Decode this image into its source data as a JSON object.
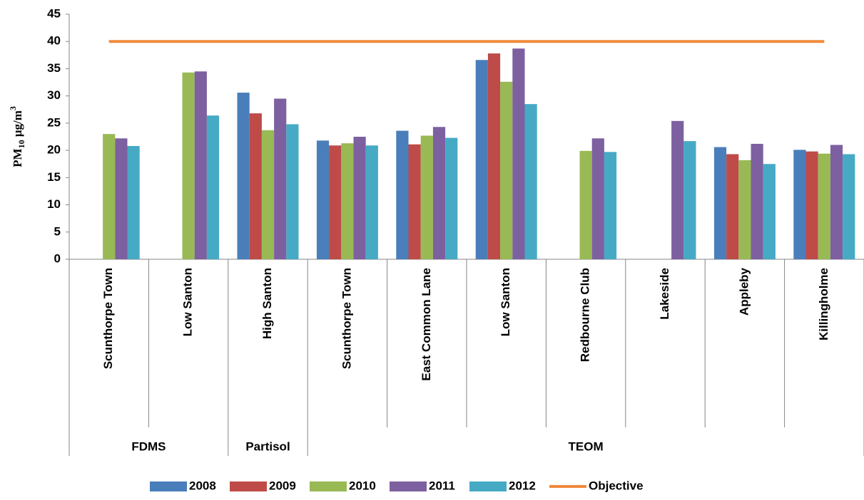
{
  "chart_data": {
    "type": "bar",
    "y_label": {
      "base": "PM",
      "sub": "10",
      "unit": " μg/m",
      "sup": "3"
    },
    "categories": [
      "Scunthorpe Town",
      "Low Santon",
      "High Santon",
      "Scunthorpe Town",
      "East Common Lane",
      "Low Santon",
      "Redbourne Club",
      "Lakeside",
      "Appleby",
      "Killingholme"
    ],
    "groups": [
      {
        "name": "FDMS",
        "span": 2
      },
      {
        "name": "Partisol",
        "span": 1
      },
      {
        "name": "TEOM",
        "span": 7
      }
    ],
    "series": [
      {
        "name": "2008",
        "color": "#4a7ebb",
        "values": [
          null,
          null,
          30.6,
          21.8,
          23.6,
          36.6,
          null,
          null,
          20.6,
          20.1
        ]
      },
      {
        "name": "2009",
        "color": "#be4b48",
        "values": [
          null,
          null,
          26.8,
          20.9,
          21.1,
          37.8,
          null,
          null,
          19.3,
          19.8
        ]
      },
      {
        "name": "2010",
        "color": "#98b954",
        "values": [
          23.0,
          34.3,
          23.7,
          21.3,
          22.7,
          32.6,
          19.9,
          null,
          18.2,
          19.4
        ]
      },
      {
        "name": "2011",
        "color": "#7d60a0",
        "values": [
          22.2,
          34.5,
          29.5,
          22.5,
          24.3,
          38.7,
          22.2,
          25.4,
          21.2,
          21.0
        ]
      },
      {
        "name": "2012",
        "color": "#46aac5",
        "values": [
          20.8,
          26.4,
          24.8,
          20.9,
          22.3,
          28.5,
          19.7,
          21.7,
          17.5,
          19.3
        ]
      },
      {
        "name": "Objective",
        "color": "#f08a3c",
        "type": "line",
        "values": [
          40,
          40,
          40,
          40,
          40,
          40,
          40,
          40,
          40,
          40
        ]
      }
    ],
    "ylim": [
      0,
      45
    ],
    "yticks": [
      0,
      5,
      10,
      15,
      20,
      25,
      30,
      35,
      40,
      45
    ],
    "grid": false
  }
}
